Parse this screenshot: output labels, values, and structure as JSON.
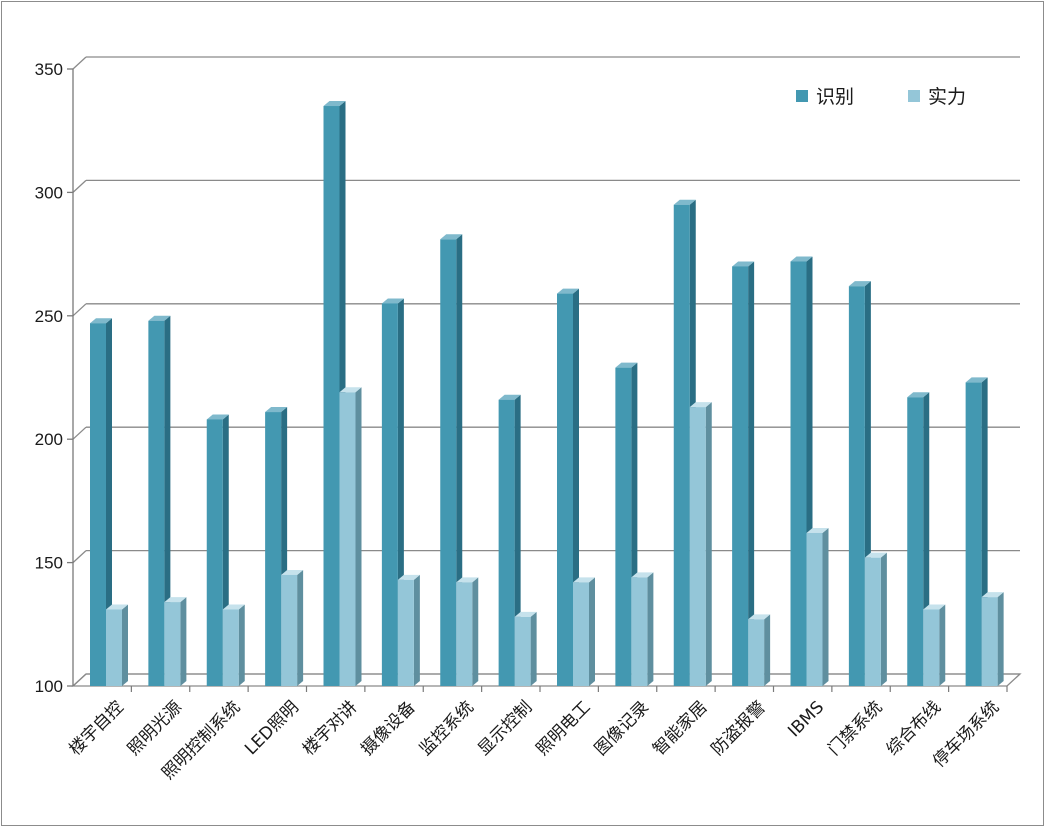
{
  "chart_data": {
    "type": "bar",
    "categories": [
      "楼宇自控",
      "照明光源",
      "照明控制系统",
      "LED照明",
      "楼宇对讲",
      "摄像设备",
      "监控系统",
      "显示控制",
      "照明电工",
      "图像记录",
      "智能家居",
      "防盗报警",
      "IBMS",
      "门禁系统",
      "综合布线",
      "停车场系统"
    ],
    "series": [
      {
        "name": "识别",
        "color": "#4398b1",
        "values": [
          247,
          248,
          208,
          211,
          335,
          255,
          281,
          216,
          259,
          229,
          295,
          270,
          272,
          262,
          217,
          223
        ]
      },
      {
        "name": "实力",
        "color": "#94c6d8",
        "values": [
          131,
          134,
          131,
          145,
          219,
          143,
          142,
          128,
          142,
          144,
          213,
          127,
          162,
          152,
          131,
          136
        ]
      }
    ],
    "ylim": [
      100,
      350
    ],
    "yticks": [
      100,
      150,
      200,
      250,
      300,
      350
    ],
    "grid": true,
    "legend_position": "top-right",
    "title": "",
    "xlabel": "",
    "ylabel": ""
  }
}
